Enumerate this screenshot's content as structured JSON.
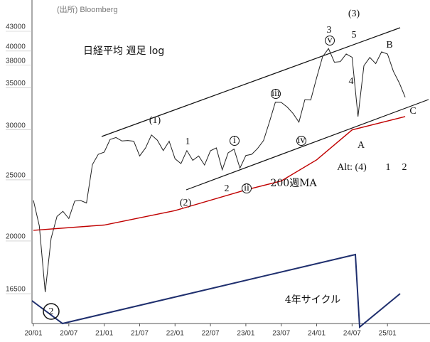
{
  "chart_data": {
    "type": "line",
    "title": "日経平均 週足 log",
    "source": "(出所) Bloomberg",
    "log_scale": true,
    "x": [
      "20/01",
      "20/02",
      "20/03",
      "20/04",
      "20/05",
      "20/06",
      "20/07",
      "20/08",
      "20/09",
      "20/10",
      "20/11",
      "20/12",
      "21/01",
      "21/02",
      "21/03",
      "21/04",
      "21/05",
      "21/06",
      "21/07",
      "21/08",
      "21/09",
      "21/10",
      "21/11",
      "21/12",
      "22/01",
      "22/02",
      "22/03",
      "22/04",
      "22/05",
      "22/06",
      "22/07",
      "22/08",
      "22/09",
      "22/10",
      "22/11",
      "22/12",
      "23/01",
      "23/02",
      "23/03",
      "23/04",
      "23/05",
      "23/06",
      "23/07",
      "23/08",
      "23/09",
      "23/10",
      "23/11",
      "23/12",
      "24/01",
      "24/02",
      "24/03",
      "24/04",
      "24/05",
      "24/06",
      "24/07",
      "24/08",
      "24/09",
      "24/10",
      "24/11",
      "24/12",
      "25/01",
      "25/02",
      "25/03",
      "25/04"
    ],
    "series": [
      {
        "name": "日経平均",
        "color": "#222222",
        "values": [
          23205,
          21143,
          16600,
          20194,
          21878,
          22288,
          21710,
          23140,
          23185,
          22977,
          26433,
          27444,
          27663,
          28966,
          29179,
          28813,
          28860,
          28792,
          27284,
          28090,
          29453,
          28893,
          27822,
          28792,
          27002,
          26527,
          27821,
          26848,
          27280,
          26393,
          27802,
          28092,
          25937,
          27587,
          27968,
          26095,
          27327,
          27446,
          28041,
          28856,
          30888,
          33189,
          33172,
          32619,
          31858,
          30859,
          33487,
          33464,
          36287,
          39166,
          40369,
          38406,
          38488,
          39583,
          39102,
          31500,
          37920,
          39081,
          38208,
          39895,
          39572,
          37156,
          35618,
          33800
        ]
      },
      {
        "name": "200週MA",
        "color": "#c00000",
        "x": [
          "20/01",
          "21/01",
          "22/01",
          "23/01",
          "23/07",
          "24/01",
          "24/07",
          "25/04"
        ],
        "values": [
          20800,
          21200,
          22350,
          24100,
          24900,
          26900,
          30000,
          31500
        ]
      }
    ],
    "xlim": [
      "20/01",
      "25/07"
    ],
    "xticks": [
      "20/01",
      "20/07",
      "21/01",
      "21/07",
      "22/01",
      "22/07",
      "23/01",
      "23/07",
      "24/01",
      "24/07",
      "25/01"
    ],
    "ylim": [
      14800,
      48200
    ],
    "yticks": [
      16500,
      20000,
      25000,
      30000,
      35000,
      38000,
      40000,
      43000
    ],
    "annotations": [
      {
        "text": "(1)"
      },
      {
        "text": "1"
      },
      {
        "text": "(2)"
      },
      {
        "text": "2"
      },
      {
        "text": "i"
      },
      {
        "text": "ii"
      },
      {
        "text": "iii"
      },
      {
        "text": "iv"
      },
      {
        "text": "v"
      },
      {
        "text": "3"
      },
      {
        "text": "(3)"
      },
      {
        "text": "5"
      },
      {
        "text": "4"
      },
      {
        "text": "A"
      },
      {
        "text": "B"
      },
      {
        "text": "C"
      },
      {
        "text": "Alt: (4)"
      },
      {
        "text": "1"
      },
      {
        "text": "2"
      },
      {
        "text": "200週MA",
        "color": "#c00000"
      },
      {
        "text": "4年サイクル",
        "color": "#1f2f6e"
      },
      {
        "text": "2"
      }
    ]
  }
}
